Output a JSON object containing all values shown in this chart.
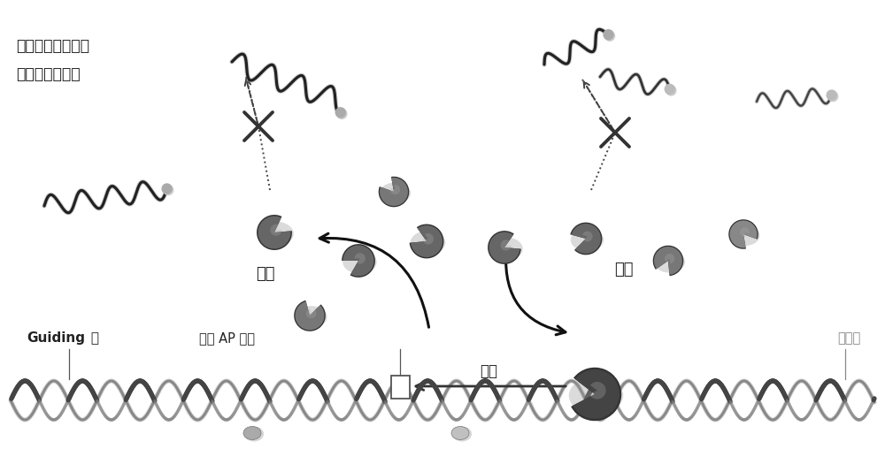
{
  "background_color": "#f0f0f0",
  "fig_bg": "#e8e8e8",
  "text_label1": "因信号放大需要而",
  "text_label2": "使用的过量探针",
  "text_guiding": "Guiding 链",
  "text_guiding_bold": "Guiding",
  "text_guiding_rest": " 链",
  "text_ap": "切割 AP 位点",
  "text_scan": "扫描",
  "text_dissociate": "解离",
  "text_bind": "结合",
  "text_substrate": "底物链",
  "probe_dark": "#222222",
  "probe_dot": "#aaaaaa",
  "enzyme_dark": "#555555",
  "enzyme_mid": "#777777",
  "enzyme_light": "#999999",
  "dna_dark": "#444444",
  "dna_mid": "#888888",
  "dna_light": "#bbbbbb",
  "arrow_color": "#222222",
  "text_color": "#222222",
  "text_light": "#888888"
}
